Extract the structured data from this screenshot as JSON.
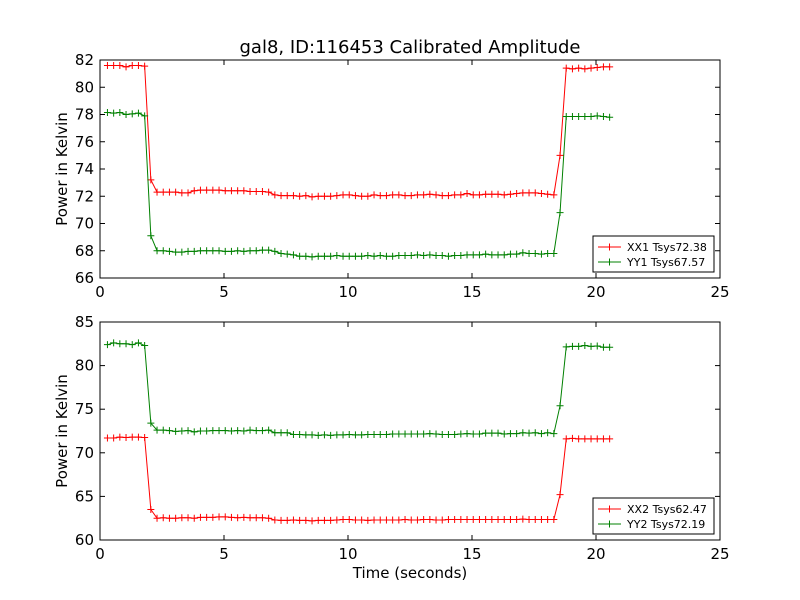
{
  "title": "gal8, ID:116453 Calibrated Amplitude",
  "xlabel": "Time (seconds)",
  "colors": {
    "red": "#ff0000",
    "green": "#008000"
  },
  "chart_data": [
    {
      "type": "line",
      "title": "gal8, ID:116453 Calibrated Amplitude",
      "xlabel": "",
      "ylabel": "Power in Kelvin",
      "xlim": [
        0,
        25
      ],
      "ylim": [
        66,
        82
      ],
      "xticks": [
        "0",
        "5",
        "10",
        "15",
        "20",
        "25"
      ],
      "yticks": [
        "66",
        "68",
        "70",
        "72",
        "74",
        "76",
        "78",
        "80",
        "82"
      ],
      "grid": false,
      "legend_position": "lower-right",
      "x": [
        0.3,
        0.55,
        0.8,
        1.05,
        1.3,
        1.55,
        1.8,
        2.05,
        2.3,
        2.55,
        2.8,
        3.05,
        3.3,
        3.55,
        3.8,
        4.05,
        4.3,
        4.55,
        4.8,
        5.05,
        5.3,
        5.55,
        5.8,
        6.05,
        6.3,
        6.55,
        6.8,
        7.05,
        7.3,
        7.55,
        7.8,
        8.05,
        8.3,
        8.55,
        8.8,
        9.05,
        9.3,
        9.55,
        9.8,
        10.05,
        10.3,
        10.55,
        10.8,
        11.05,
        11.3,
        11.55,
        11.8,
        12.05,
        12.3,
        12.55,
        12.8,
        13.05,
        13.3,
        13.55,
        13.8,
        14.05,
        14.3,
        14.55,
        14.8,
        15.05,
        15.3,
        15.55,
        15.8,
        16.05,
        16.3,
        16.55,
        16.8,
        17.05,
        17.3,
        17.55,
        17.8,
        18.05,
        18.3,
        18.55,
        18.8,
        19.05,
        19.3,
        19.55,
        19.8,
        20.05,
        20.3,
        20.55
      ],
      "series": [
        {
          "name": "XX1 Tsys72.38",
          "color": "#ff0000",
          "values": [
            81.6,
            81.6,
            81.6,
            81.5,
            81.6,
            81.6,
            81.55,
            73.2,
            72.3,
            72.3,
            72.3,
            72.3,
            72.25,
            72.25,
            72.4,
            72.45,
            72.45,
            72.45,
            72.45,
            72.4,
            72.4,
            72.4,
            72.4,
            72.35,
            72.35,
            72.35,
            72.3,
            72.1,
            72.05,
            72.05,
            72.05,
            72.0,
            72.05,
            71.95,
            72.0,
            72.0,
            72.0,
            72.05,
            72.1,
            72.1,
            72.05,
            72.0,
            72.0,
            72.1,
            72.05,
            72.05,
            72.1,
            72.1,
            72.05,
            72.05,
            72.1,
            72.1,
            72.15,
            72.1,
            72.05,
            72.05,
            72.1,
            72.1,
            72.2,
            72.1,
            72.1,
            72.15,
            72.15,
            72.15,
            72.1,
            72.15,
            72.2,
            72.25,
            72.25,
            72.25,
            72.2,
            72.15,
            72.1,
            75.0,
            81.4,
            81.35,
            81.4,
            81.35,
            81.4,
            81.45,
            81.5,
            81.5
          ]
        },
        {
          "name": "YY1 Tsys67.57",
          "color": "#008000",
          "values": [
            78.15,
            78.1,
            78.15,
            78.0,
            78.05,
            78.1,
            77.9,
            69.1,
            68.0,
            68.0,
            67.95,
            67.9,
            67.9,
            67.95,
            67.95,
            68.0,
            68.0,
            68.0,
            68.0,
            67.95,
            67.95,
            68.0,
            67.95,
            68.0,
            68.0,
            68.05,
            68.05,
            67.95,
            67.8,
            67.75,
            67.7,
            67.6,
            67.6,
            67.55,
            67.6,
            67.6,
            67.6,
            67.65,
            67.6,
            67.6,
            67.6,
            67.6,
            67.65,
            67.6,
            67.65,
            67.6,
            67.6,
            67.65,
            67.65,
            67.65,
            67.7,
            67.65,
            67.7,
            67.65,
            67.65,
            67.6,
            67.65,
            67.65,
            67.7,
            67.7,
            67.7,
            67.75,
            67.7,
            67.7,
            67.7,
            67.75,
            67.75,
            67.85,
            67.8,
            67.8,
            67.75,
            67.8,
            67.8,
            70.8,
            77.85,
            77.85,
            77.85,
            77.85,
            77.85,
            77.9,
            77.85,
            77.8
          ]
        }
      ]
    },
    {
      "type": "line",
      "title": "",
      "xlabel": "Time (seconds)",
      "ylabel": "Power in Kelvin",
      "xlim": [
        0,
        25
      ],
      "ylim": [
        60,
        85
      ],
      "xticks": [
        "0",
        "5",
        "10",
        "15",
        "20",
        "25"
      ],
      "yticks": [
        "60",
        "65",
        "70",
        "75",
        "80",
        "85"
      ],
      "grid": false,
      "legend_position": "lower-right",
      "x": [
        0.3,
        0.55,
        0.8,
        1.05,
        1.3,
        1.55,
        1.8,
        2.05,
        2.3,
        2.55,
        2.8,
        3.05,
        3.3,
        3.55,
        3.8,
        4.05,
        4.3,
        4.55,
        4.8,
        5.05,
        5.3,
        5.55,
        5.8,
        6.05,
        6.3,
        6.55,
        6.8,
        7.05,
        7.3,
        7.55,
        7.8,
        8.05,
        8.3,
        8.55,
        8.8,
        9.05,
        9.3,
        9.55,
        9.8,
        10.05,
        10.3,
        10.55,
        10.8,
        11.05,
        11.3,
        11.55,
        11.8,
        12.05,
        12.3,
        12.55,
        12.8,
        13.05,
        13.3,
        13.55,
        13.8,
        14.05,
        14.3,
        14.55,
        14.8,
        15.05,
        15.3,
        15.55,
        15.8,
        16.05,
        16.3,
        16.55,
        16.8,
        17.05,
        17.3,
        17.55,
        17.8,
        18.05,
        18.3,
        18.55,
        18.8,
        19.05,
        19.3,
        19.55,
        19.8,
        20.05,
        20.3,
        20.55
      ],
      "series": [
        {
          "name": "XX2 Tsys62.47",
          "color": "#ff0000",
          "values": [
            71.7,
            71.7,
            71.8,
            71.75,
            71.8,
            71.8,
            71.75,
            63.5,
            62.5,
            62.55,
            62.5,
            62.5,
            62.55,
            62.55,
            62.5,
            62.6,
            62.6,
            62.6,
            62.65,
            62.65,
            62.6,
            62.55,
            62.6,
            62.55,
            62.55,
            62.55,
            62.5,
            62.3,
            62.25,
            62.25,
            62.3,
            62.25,
            62.25,
            62.2,
            62.25,
            62.25,
            62.25,
            62.3,
            62.35,
            62.35,
            62.3,
            62.3,
            62.25,
            62.3,
            62.3,
            62.3,
            62.3,
            62.3,
            62.35,
            62.3,
            62.3,
            62.35,
            62.35,
            62.3,
            62.3,
            62.35,
            62.35,
            62.35,
            62.35,
            62.35,
            62.35,
            62.35,
            62.35,
            62.35,
            62.35,
            62.35,
            62.35,
            62.4,
            62.35,
            62.35,
            62.35,
            62.35,
            62.35,
            65.2,
            71.6,
            71.65,
            71.6,
            71.6,
            71.6,
            71.6,
            71.6,
            71.6
          ]
        },
        {
          "name": "YY2 Tsys72.19",
          "color": "#008000",
          "values": [
            82.4,
            82.6,
            82.5,
            82.5,
            82.4,
            82.6,
            82.3,
            73.4,
            72.6,
            72.6,
            72.55,
            72.45,
            72.5,
            72.55,
            72.4,
            72.5,
            72.5,
            72.55,
            72.55,
            72.55,
            72.5,
            72.55,
            72.5,
            72.6,
            72.55,
            72.55,
            72.6,
            72.3,
            72.3,
            72.3,
            72.1,
            72.1,
            72.05,
            72.05,
            72.0,
            72.05,
            72.0,
            72.05,
            72.05,
            72.1,
            72.05,
            72.05,
            72.1,
            72.1,
            72.1,
            72.1,
            72.15,
            72.15,
            72.15,
            72.15,
            72.15,
            72.15,
            72.2,
            72.15,
            72.1,
            72.1,
            72.1,
            72.15,
            72.2,
            72.15,
            72.15,
            72.25,
            72.25,
            72.25,
            72.15,
            72.2,
            72.2,
            72.3,
            72.25,
            72.3,
            72.2,
            72.3,
            72.2,
            75.4,
            82.15,
            82.2,
            82.2,
            82.3,
            82.2,
            82.25,
            82.1,
            82.1
          ]
        }
      ]
    }
  ]
}
